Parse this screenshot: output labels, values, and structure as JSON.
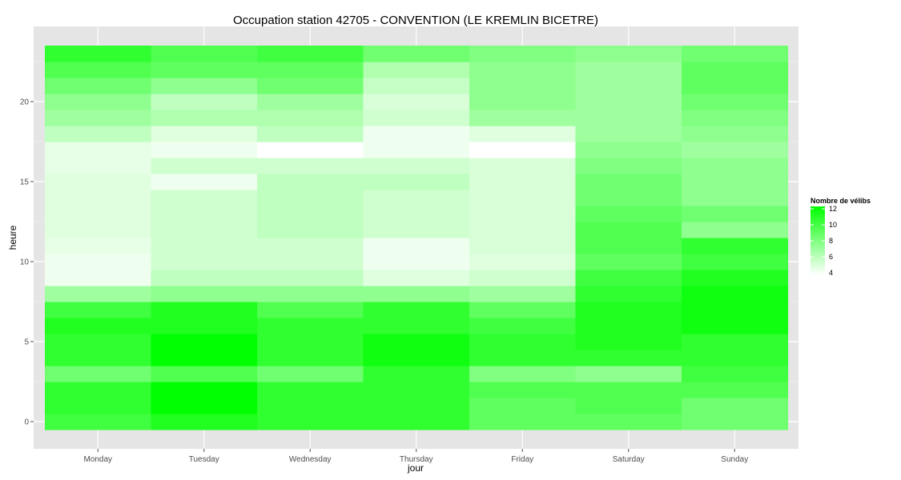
{
  "chart_data": {
    "type": "heatmap",
    "title": "Occupation station 42705 - CONVENTION (LE KREMLIN BICETRE)",
    "xlabel": "jour",
    "ylabel": "heure",
    "categories": [
      "Monday",
      "Tuesday",
      "Wednesday",
      "Thursday",
      "Friday",
      "Saturday",
      "Sunday"
    ],
    "y_ticks": [
      0,
      5,
      10,
      15,
      20
    ],
    "ylim": [
      -0.5,
      23.5
    ],
    "hours": [
      0,
      1,
      2,
      3,
      4,
      5,
      6,
      7,
      8,
      9,
      10,
      11,
      12,
      13,
      14,
      15,
      16,
      17,
      18,
      19,
      20,
      21,
      22,
      23
    ],
    "values": [
      [
        10.0,
        11.0,
        10.5,
        10.5,
        9.0,
        9.0,
        8.5
      ],
      [
        10.5,
        12.0,
        10.5,
        10.5,
        9.0,
        9.5,
        8.5
      ],
      [
        10.5,
        12.0,
        10.5,
        10.5,
        9.5,
        9.5,
        9.5
      ],
      [
        8.5,
        9.5,
        8.5,
        10.5,
        8.0,
        7.5,
        10.0
      ],
      [
        10.5,
        12.0,
        10.5,
        11.5,
        10.5,
        10.5,
        10.5
      ],
      [
        10.5,
        12.0,
        10.5,
        11.5,
        10.5,
        11.0,
        10.5
      ],
      [
        11.0,
        11.0,
        10.5,
        10.5,
        10.0,
        11.0,
        11.5
      ],
      [
        10.0,
        11.0,
        9.5,
        10.5,
        9.0,
        11.0,
        11.5
      ],
      [
        7.0,
        7.5,
        7.5,
        7.5,
        7.0,
        10.5,
        11.5
      ],
      [
        4.5,
        6.0,
        6.0,
        5.0,
        5.5,
        10.0,
        11.0
      ],
      [
        4.5,
        5.5,
        5.5,
        4.5,
        5.0,
        9.0,
        10.0
      ],
      [
        4.8,
        5.5,
        5.5,
        4.5,
        5.2,
        9.5,
        10.5
      ],
      [
        5.0,
        5.5,
        6.0,
        5.5,
        5.2,
        9.5,
        7.5
      ],
      [
        5.0,
        5.5,
        6.0,
        5.5,
        5.2,
        9.0,
        8.5
      ],
      [
        5.0,
        5.5,
        6.0,
        5.5,
        5.2,
        8.5,
        7.5
      ],
      [
        5.0,
        4.5,
        6.0,
        6.0,
        5.2,
        8.5,
        7.5
      ],
      [
        4.8,
        5.5,
        5.5,
        5.5,
        5.2,
        8.0,
        7.5
      ],
      [
        4.8,
        4.5,
        4.0,
        4.5,
        4.0,
        7.5,
        7.0
      ],
      [
        6.0,
        5.0,
        6.0,
        4.5,
        5.0,
        7.0,
        7.5
      ],
      [
        7.0,
        6.5,
        6.5,
        5.5,
        7.0,
        7.0,
        8.0
      ],
      [
        7.5,
        6.0,
        7.0,
        5.2,
        7.5,
        7.0,
        8.5
      ],
      [
        8.5,
        7.5,
        8.5,
        5.8,
        7.5,
        7.0,
        9.0
      ],
      [
        9.5,
        9.0,
        9.0,
        6.5,
        7.5,
        7.0,
        9.0
      ],
      [
        10.5,
        9.5,
        10.0,
        8.5,
        8.0,
        7.5,
        8.5
      ]
    ],
    "color_range": [
      4,
      12
    ],
    "color_low": "#ffffff",
    "color_high": "#00ff00",
    "grid": true,
    "panel_background": "#e5e5e5",
    "legend": {
      "title": "Nombre de vélibs",
      "ticks": [
        4,
        6,
        8,
        10,
        12
      ],
      "placement": "right"
    }
  }
}
